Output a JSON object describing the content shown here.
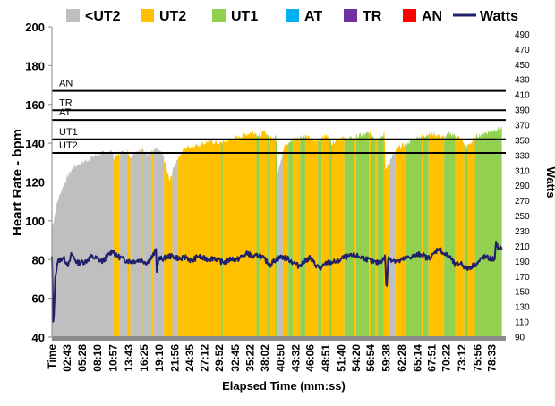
{
  "chart_data": {
    "type": "area",
    "title": "",
    "legend": [
      {
        "name": "<UT2",
        "color": "#BFBFBF",
        "kind": "swatch"
      },
      {
        "name": "UT2",
        "color": "#FFC000",
        "kind": "swatch"
      },
      {
        "name": "UT1",
        "color": "#92D050",
        "kind": "swatch"
      },
      {
        "name": "AT",
        "color": "#00B0F0",
        "kind": "swatch"
      },
      {
        "name": "TR",
        "color": "#7030A0",
        "kind": "swatch"
      },
      {
        "name": "AN",
        "color": "#FF0000",
        "kind": "swatch"
      },
      {
        "name": "Watts",
        "color": "#1F1F6B",
        "kind": "line"
      }
    ],
    "ylabel": "Heart Rate - bpm",
    "y2label": "Watts",
    "xlabel": "Elapsed Time (mm:ss)",
    "ylim": [
      40,
      200
    ],
    "yticks": [
      40,
      60,
      80,
      100,
      120,
      140,
      160,
      180,
      200
    ],
    "y2lim": [
      90,
      500
    ],
    "y2ticks": [
      90,
      110,
      130,
      150,
      170,
      190,
      210,
      230,
      250,
      270,
      290,
      310,
      330,
      350,
      370,
      390,
      410,
      430,
      450,
      470,
      490
    ],
    "xlim_minutes": [
      0,
      81
    ],
    "x_tick_minutes": [
      0,
      2.717,
      5.467,
      8.167,
      10.95,
      13.717,
      16.417,
      19.167,
      21.933,
      24.583,
      27.2,
      29.867,
      32.75,
      35.367,
      38.033,
      40.833,
      43.533,
      46.1,
      48.85,
      51.667,
      54.333,
      56.9,
      59.633,
      62.467,
      65.233,
      67.85,
      70.367,
      73.2,
      75.933,
      78.55
    ],
    "x_tick_labels": [
      "Time",
      "02:43",
      "05:28",
      "08:10",
      "10:57",
      "13:43",
      "16:25",
      "19:10",
      "21:56",
      "24:35",
      "27:12",
      "29:52",
      "32:45",
      "35:22",
      "38:02",
      "40:50",
      "43:32",
      "46:06",
      "48:51",
      "51:40",
      "54:20",
      "56:54",
      "59:38",
      "62:28",
      "65:14",
      "67:51",
      "70:22",
      "73:12",
      "75:56",
      "78:33"
    ],
    "zone_lines": [
      {
        "label": "UT2",
        "hr": 135
      },
      {
        "label": "UT1",
        "hr": 142
      },
      {
        "label": "AT",
        "hr": 152
      },
      {
        "label": "TR",
        "hr": 157
      },
      {
        "label": "AN",
        "hr": 167
      }
    ],
    "heart_rate_keyframes": {
      "minutes": [
        0,
        0.3,
        1,
        2,
        3,
        4,
        6,
        8,
        9.5,
        10.9,
        11,
        12,
        13.5,
        14,
        15,
        16,
        17,
        18,
        19,
        20,
        21,
        22,
        23,
        24,
        26,
        28,
        30,
        32,
        34,
        35,
        36,
        37,
        38,
        39,
        40,
        40.3,
        40.5,
        41.5,
        43,
        45,
        47,
        49,
        50,
        51,
        53,
        55,
        57,
        58,
        59.4,
        59.5,
        60.5,
        62,
        64,
        66,
        68,
        70,
        71,
        72,
        73,
        74,
        76,
        78,
        79,
        80.3
      ],
      "bpm": [
        96,
        100,
        110,
        118,
        124,
        128,
        131,
        134,
        135,
        136,
        132,
        135,
        136,
        133,
        136,
        137,
        135,
        136,
        137,
        132,
        120,
        130,
        135,
        138,
        139,
        141,
        140,
        142,
        144,
        145,
        146,
        144,
        146,
        143,
        144,
        125,
        128,
        138,
        142,
        144,
        141,
        144,
        140,
        143,
        142,
        144,
        145,
        142,
        145,
        126,
        132,
        138,
        141,
        144,
        145,
        143,
        145,
        144,
        142,
        138,
        144,
        146,
        147,
        148
      ]
    },
    "zone_segments": {
      "start_minutes": [
        0,
        11,
        12,
        13.5,
        14,
        15.9,
        16.2,
        17.8,
        18.1,
        20,
        21.5,
        22.5,
        23.3,
        30.2,
        30.5,
        33,
        36.5,
        37,
        38.5,
        38.8,
        39.8,
        40.3,
        41.2,
        42.2,
        43,
        44.3,
        45.2,
        47.5,
        48.1,
        49.5,
        50,
        52.2,
        54,
        54.3,
        56.6,
        57,
        57.8,
        58.1,
        59.2,
        60.2,
        61.3,
        63,
        66,
        66.3,
        67.2,
        70,
        72,
        73.6,
        74.2,
        75.5,
        77
      ],
      "zone": [
        "<UT2",
        "UT2",
        "<UT2",
        "UT2",
        "<UT2",
        "UT2",
        "<UT2",
        "UT2",
        "<UT2",
        "UT2",
        "<UT2",
        "UT2",
        "UT2",
        "UT1",
        "UT2",
        "UT2",
        "UT1",
        "UT2",
        "UT1",
        "UT2",
        "UT1",
        "<UT2",
        "UT2",
        "UT1",
        "UT2",
        "UT1",
        "UT2",
        "UT1",
        "UT2",
        "UT1",
        "UT2",
        "UT1",
        "UT2",
        "UT1",
        "UT2",
        "UT1",
        "UT2",
        "UT1",
        "UT2",
        "<UT2",
        "UT2",
        "UT1",
        "UT2",
        "UT1",
        "UT2",
        "UT1",
        "UT2",
        "UT1",
        "UT2",
        "UT1",
        "UT1"
      ]
    },
    "watts_keyframes": {
      "minutes": [
        0,
        0.25,
        0.6,
        1,
        2,
        3,
        3.5,
        4.5,
        6,
        7,
        8,
        9,
        10,
        10.9,
        11.3,
        12,
        13,
        14,
        16,
        17,
        18,
        18.6,
        18.7,
        19,
        20,
        21,
        22,
        23,
        24,
        25,
        26,
        27,
        28,
        29,
        30,
        31,
        32,
        33,
        34,
        35,
        36,
        37,
        38,
        39,
        40,
        41,
        42,
        43,
        44,
        46,
        47,
        48,
        49,
        50,
        51,
        52,
        54,
        55,
        56,
        57,
        58,
        59,
        59.5,
        59.7,
        60,
        61,
        62,
        63,
        64,
        65,
        66,
        67,
        68,
        69,
        70,
        71,
        72,
        73,
        74,
        75,
        76,
        77,
        78,
        79,
        79.3,
        79.7,
        80.3
      ],
      "watts": [
        195,
        100,
        170,
        190,
        195,
        185,
        200,
        188,
        190,
        196,
        194,
        190,
        198,
        205,
        198,
        196,
        192,
        190,
        192,
        188,
        197,
        206,
        178,
        193,
        194,
        197,
        196,
        193,
        196,
        190,
        197,
        194,
        193,
        195,
        190,
        189,
        194,
        192,
        197,
        201,
        195,
        199,
        192,
        186,
        193,
        196,
        194,
        189,
        184,
        195,
        186,
        180,
        188,
        189,
        190,
        195,
        198,
        196,
        194,
        190,
        188,
        192,
        196,
        145,
        194,
        192,
        190,
        194,
        196,
        198,
        200,
        194,
        198,
        208,
        200,
        196,
        185,
        188,
        180,
        184,
        188,
        196,
        194,
        193,
        215,
        205,
        208
      ]
    }
  }
}
